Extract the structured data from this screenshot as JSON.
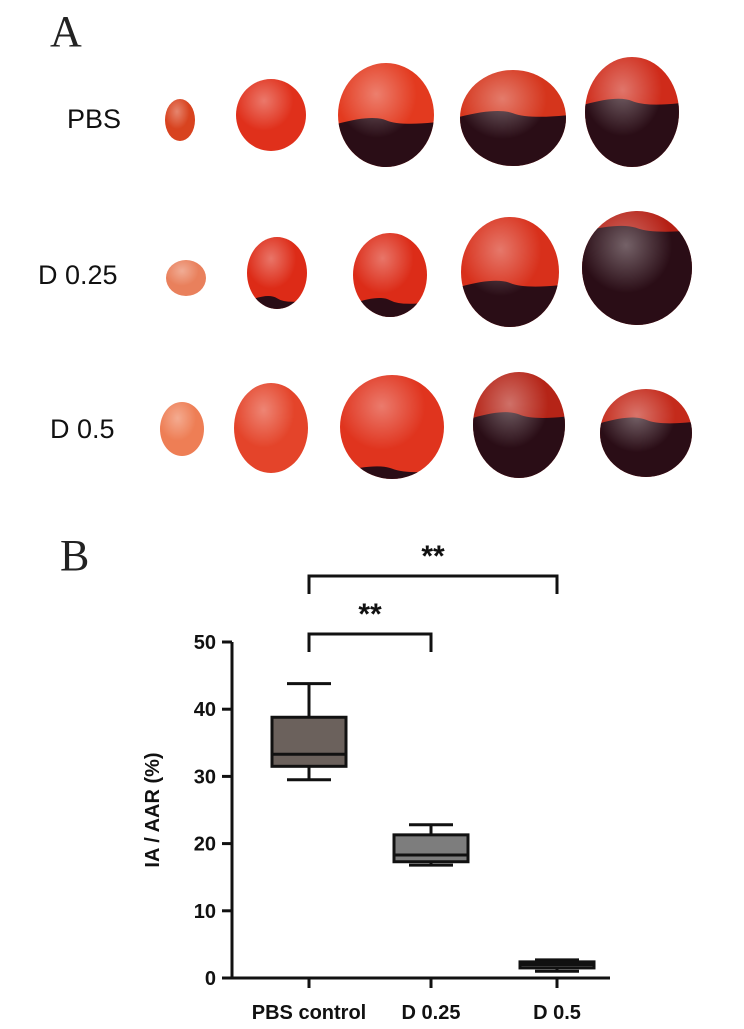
{
  "panel_a": {
    "letter": "A",
    "rows": [
      {
        "label": "PBS",
        "slices": [
          {
            "infarct": 0.0,
            "tone": "#d8431f"
          },
          {
            "infarct": 0.0,
            "tone": "#e0301b"
          },
          {
            "infarct": 0.45,
            "tone": "#e33a1f"
          },
          {
            "infarct": 0.55,
            "tone": "#d5351c"
          },
          {
            "infarct": 0.6,
            "tone": "#cf2b1a"
          }
        ]
      },
      {
        "label": "D 0.25",
        "slices": [
          {
            "infarct": 0.0,
            "tone": "#e9805c"
          },
          {
            "infarct": 0.15,
            "tone": "#dd2b17"
          },
          {
            "infarct": 0.2,
            "tone": "#dc2c18"
          },
          {
            "infarct": 0.4,
            "tone": "#d8301b"
          },
          {
            "infarct": 0.85,
            "tone": "#b52015"
          }
        ]
      },
      {
        "label": "D 0.5",
        "slices": [
          {
            "infarct": 0.0,
            "tone": "#ee7e55"
          },
          {
            "infarct": 0.0,
            "tone": "#e4442a"
          },
          {
            "infarct": 0.1,
            "tone": "#e0341e"
          },
          {
            "infarct": 0.6,
            "tone": "#b52417"
          },
          {
            "infarct": 0.65,
            "tone": "#c42a1b"
          }
        ]
      }
    ]
  },
  "panel_b": {
    "letter": "B"
  },
  "chart_data": {
    "type": "box",
    "categories": [
      "PBS control",
      "D 0.25",
      "D 0.5"
    ],
    "ylabel": "IA / AAR (%)",
    "ylim": [
      0,
      50
    ],
    "yticks": [
      "0",
      "10",
      "20",
      "30",
      "40",
      "50"
    ],
    "boxes": [
      {
        "category": "PBS control",
        "min": 29.5,
        "q1": 31.5,
        "median": 33.3,
        "q3": 38.8,
        "max": 43.8,
        "color": "#6b615c"
      },
      {
        "category": "D 0.25",
        "min": 16.8,
        "q1": 17.3,
        "median": 18.3,
        "q3": 21.3,
        "max": 22.8,
        "color": "#7d7d7d"
      },
      {
        "category": "D 0.5",
        "min": 1.0,
        "q1": 1.5,
        "median": 2.0,
        "q3": 2.4,
        "max": 2.7,
        "color": "#6b6b6b"
      }
    ],
    "significance": [
      {
        "from": "PBS control",
        "to": "D 0.25",
        "label": "**"
      },
      {
        "from": "PBS control",
        "to": "D 0.5",
        "label": "**"
      }
    ]
  }
}
